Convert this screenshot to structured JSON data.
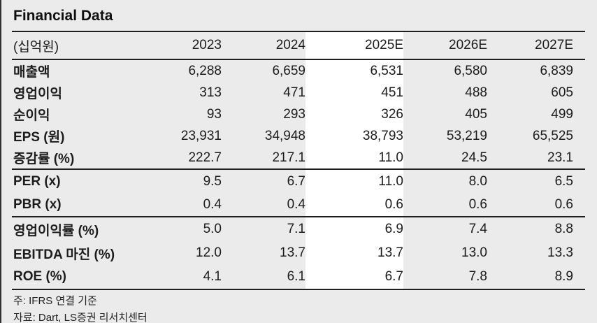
{
  "title": "Financial Data",
  "table": {
    "unit_label": "(십억원)",
    "columns": [
      "2023",
      "2024",
      "2025E",
      "2026E",
      "2027E"
    ],
    "highlight_column": "2025E",
    "sections": [
      {
        "rows": [
          {
            "label": "매출액",
            "values": [
              "6,288",
              "6,659",
              "6,531",
              "6,580",
              "6,839"
            ]
          },
          {
            "label": "영업이익",
            "values": [
              "313",
              "471",
              "451",
              "488",
              "605"
            ]
          },
          {
            "label": "순이익",
            "values": [
              "93",
              "293",
              "326",
              "405",
              "499"
            ]
          },
          {
            "label": "EPS (원)",
            "values": [
              "23,931",
              "34,948",
              "38,793",
              "53,219",
              "65,525"
            ]
          },
          {
            "label": "증감률 (%)",
            "values": [
              "222.7",
              "217.1",
              "11.0",
              "24.5",
              "23.1"
            ]
          }
        ]
      },
      {
        "rows": [
          {
            "label": "PER (x)",
            "values": [
              "9.5",
              "6.7",
              "11.0",
              "8.0",
              "6.5"
            ]
          },
          {
            "label": "PBR (x)",
            "values": [
              "0.4",
              "0.4",
              "0.6",
              "0.6",
              "0.6"
            ]
          }
        ]
      },
      {
        "rows": [
          {
            "label": "영업이익률 (%)",
            "values": [
              "5.0",
              "7.1",
              "6.9",
              "7.4",
              "8.8"
            ]
          },
          {
            "label": "EBITDA 마진 (%)",
            "values": [
              "12.0",
              "13.7",
              "13.7",
              "13.0",
              "13.3"
            ]
          },
          {
            "label": "ROE (%)",
            "values": [
              "4.1",
              "6.1",
              "6.7",
              "7.8",
              "8.9"
            ]
          }
        ]
      }
    ]
  },
  "footnotes": [
    "주: IFRS 연결 기준",
    "자료: Dart, LS증권 리서치센터"
  ],
  "colors": {
    "background": "#ebebeb",
    "highlight_column_bg": "#ffffff",
    "rule_line": "#1e1e1e",
    "left_edge_border": "#323232",
    "text": "#1c1c1c"
  }
}
